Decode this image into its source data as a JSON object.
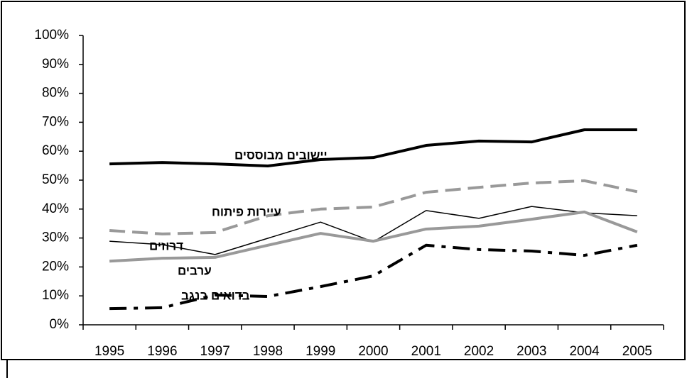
{
  "chart_data": {
    "type": "line",
    "categories": [
      "1995",
      "1996",
      "1997",
      "1998",
      "1999",
      "2000",
      "2001",
      "2002",
      "2003",
      "2004",
      "2005"
    ],
    "ylim": [
      0,
      100
    ],
    "yticks": [
      {
        "value": 0,
        "label": "0%"
      },
      {
        "value": 10,
        "label": "10%"
      },
      {
        "value": 20,
        "label": "20%"
      },
      {
        "value": 30,
        "label": "30%"
      },
      {
        "value": 40,
        "label": "40%"
      },
      {
        "value": 50,
        "label": "50%"
      },
      {
        "value": 60,
        "label": "60%"
      },
      {
        "value": 70,
        "label": "70%"
      },
      {
        "value": 80,
        "label": "80%"
      },
      {
        "value": 90,
        "label": "90%"
      },
      {
        "value": 100,
        "label": "100%"
      }
    ],
    "grid": false,
    "series": [
      {
        "name": "יישובים מבוססים",
        "color": "#000000",
        "width": 4,
        "dash": "solid",
        "values": [
          55.6,
          56.1,
          55.6,
          54.9,
          57.1,
          57.8,
          62,
          63.5,
          63.2,
          67.4,
          67.4
        ]
      },
      {
        "name": "עיירות פיתוח",
        "color": "#999999",
        "width": 4,
        "dash": "dash",
        "values": [
          32.6,
          31.4,
          31.9,
          37.7,
          40,
          40.7,
          45.8,
          47.5,
          49,
          49.8,
          46
        ]
      },
      {
        "name": "דרוזים",
        "color": "#000000",
        "width": 1.5,
        "dash": "solid",
        "values": [
          28.9,
          27.7,
          24.3,
          29.9,
          35.5,
          28.7,
          39.5,
          36.8,
          40.9,
          38.7,
          37.7
        ]
      },
      {
        "name": "ערבים",
        "color": "#999999",
        "width": 4,
        "dash": "solid",
        "values": [
          22,
          23,
          23.3,
          27.5,
          31.6,
          28.9,
          33.1,
          34.1,
          36.5,
          39,
          32.1
        ]
      },
      {
        "name": "בדואים בנגב",
        "color": "#000000",
        "width": 4,
        "dash": "dashdot",
        "values": [
          5.6,
          5.9,
          10.3,
          9.8,
          13.2,
          16.9,
          27.5,
          26,
          25.5,
          24,
          27.5
        ]
      }
    ]
  }
}
